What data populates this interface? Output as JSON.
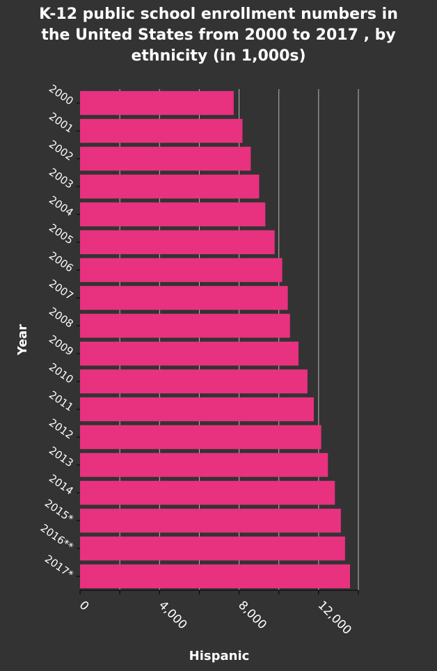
{
  "chart_data": {
    "type": "bar",
    "orientation": "horizontal",
    "title": "K-12 public school enrollment numbers in the United States from 2000 to 2017 , by ethnicity (in 1,000s)",
    "xlabel": "Hispanic",
    "ylabel": "Year",
    "xlim": [
      0,
      14000
    ],
    "xticks": [
      0,
      4000,
      8000,
      12000
    ],
    "xtick_labels": [
      "0",
      "4,000",
      "8,000",
      "12,000"
    ],
    "categories": [
      "2000",
      "2001",
      "2002",
      "2003",
      "2004",
      "2005",
      "2006",
      "2007",
      "2008",
      "2009",
      "2010",
      "2011",
      "2012",
      "2013",
      "2014",
      "2015*",
      "2016**",
      "2017*"
    ],
    "values": [
      7730,
      8170,
      8590,
      9010,
      9320,
      9790,
      10170,
      10450,
      10560,
      10990,
      11440,
      11760,
      12130,
      12470,
      12820,
      13120,
      13330,
      13580
    ],
    "grid": "vertical",
    "bar_color": "#e8317f"
  },
  "colors": {
    "background": "#333333",
    "plot_background": "#333333",
    "grid": "#bbbbbb",
    "text": "#ffffff"
  }
}
